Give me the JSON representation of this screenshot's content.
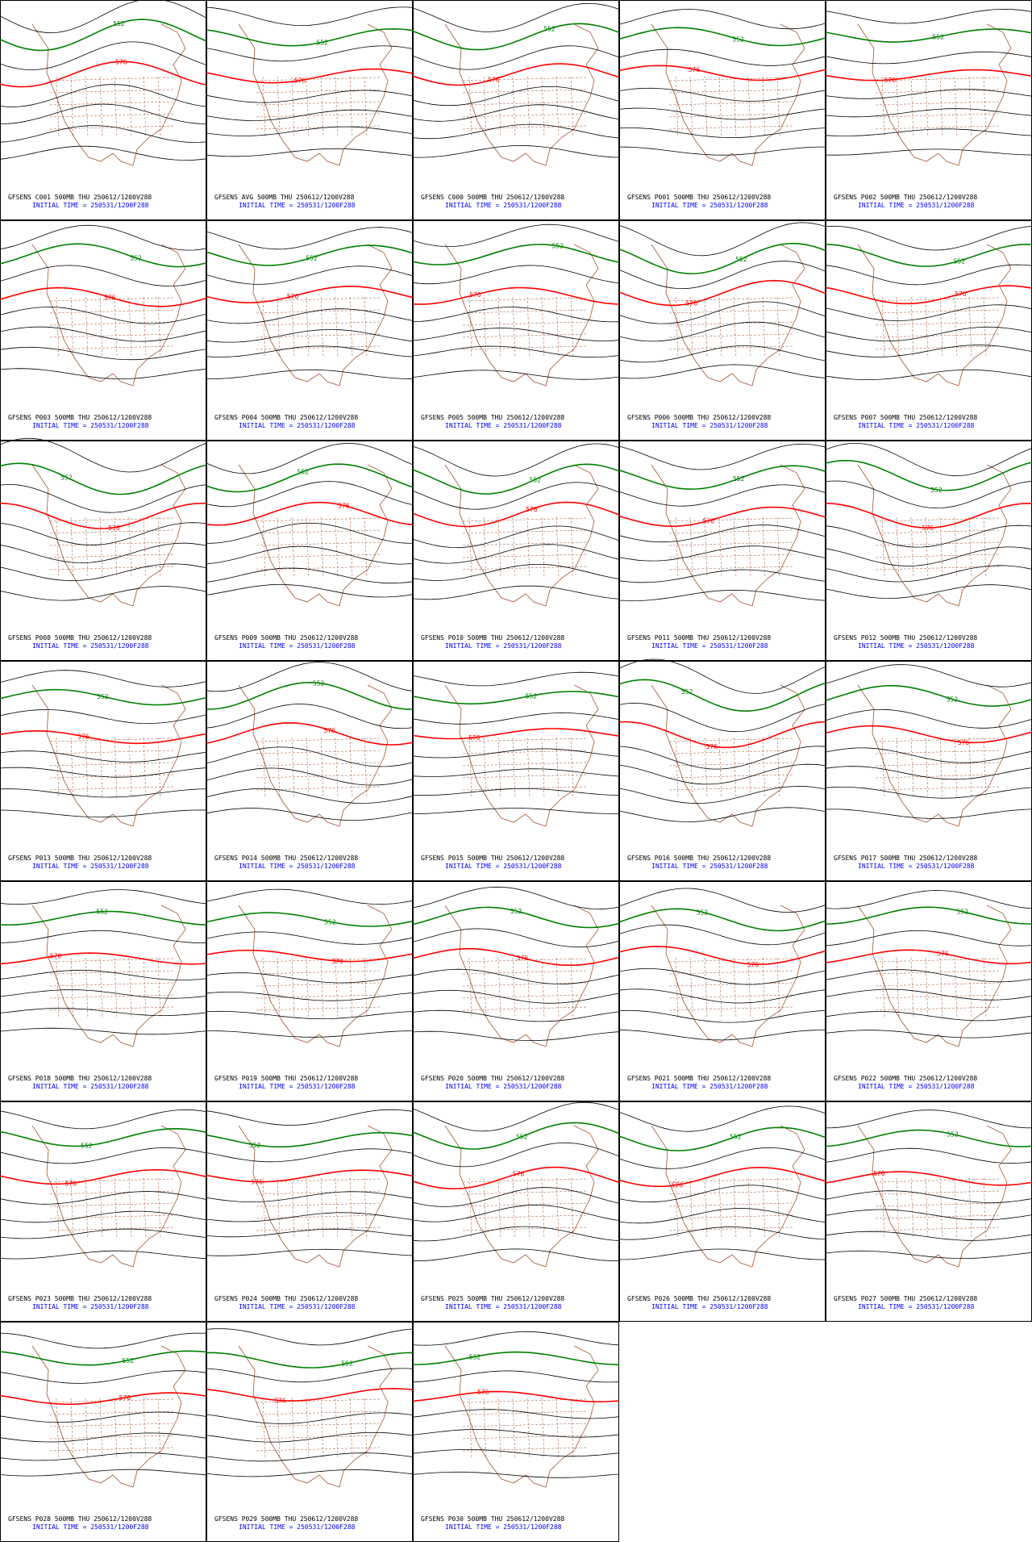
{
  "panels": [
    {
      "label": "GFSENS C001 500MB THU 250612/1200V288"
    },
    {
      "label": "GFSENS AVG 500MB THU 250612/1200V288"
    },
    {
      "label": "GFSENS C000 500MB THU 250612/1200V288"
    },
    {
      "label": "GFSENS P001 500MB THU 250612/1200V288"
    },
    {
      "label": "GFSENS P002 500MB THU 250612/1200V288"
    },
    {
      "label": "GFSENS P003 500MB THU 250612/1200V288"
    },
    {
      "label": "GFSENS P004 500MB THU 250612/1200V288"
    },
    {
      "label": "GFSENS P005 500MB THU 250612/1200V288"
    },
    {
      "label": "GFSENS P006 500MB THU 250612/1200V288"
    },
    {
      "label": "GFSENS P007 500MB THU 250612/1200V288"
    },
    {
      "label": "GFSENS P008 500MB THU 250612/1200V288"
    },
    {
      "label": "GFSENS P009 500MB THU 250612/1200V288"
    },
    {
      "label": "GFSENS P010 500MB THU 250612/1200V288"
    },
    {
      "label": "GFSENS P011 500MB THU 250612/1200V288"
    },
    {
      "label": "GFSENS P012 500MB THU 250612/1200V288"
    },
    {
      "label": "GFSENS P013 500MB THU 250612/1200V288"
    },
    {
      "label": "GFSENS P014 500MB THU 250612/1200V288"
    },
    {
      "label": "GFSENS P015 500MB THU 250612/1200V288"
    },
    {
      "label": "GFSENS P016 500MB THU 250612/1200V288"
    },
    {
      "label": "GFSENS P017 500MB THU 250612/1200V288"
    },
    {
      "label": "GFSENS P018 500MB THU 250612/1200V288"
    },
    {
      "label": "GFSENS P019 500MB THU 250612/1200V288"
    },
    {
      "label": "GFSENS P020 500MB THU 250612/1200V288"
    },
    {
      "label": "GFSENS P021 500MB THU 250612/1200V288"
    },
    {
      "label": "GFSENS P022 500MB THU 250612/1200V288"
    },
    {
      "label": "GFSENS P023 500MB THU 250612/1200V288"
    },
    {
      "label": "GFSENS P024 500MB THU 250612/1200V288"
    },
    {
      "label": "GFSENS P025 500MB THU 250612/1200V288"
    },
    {
      "label": "GFSENS P026 500MB THU 250612/1200V288"
    },
    {
      "label": "GFSENS P027 500MB THU 250612/1200V288"
    },
    {
      "label": "GFSENS P028 500MB THU 250612/1200V288"
    },
    {
      "label": "GFSENS P029 500MB THU 250612/1200V288"
    },
    {
      "label": "GFSENS P030 500MB THU 250612/1200V288"
    }
  ],
  "initial_time": "INITIAL TIME = 250531/1200F288",
  "contour_labels": [
    {
      "label": "552",
      "color": "#008000"
    },
    {
      "label": "576",
      "color": "#ff0000"
    }
  ]
}
